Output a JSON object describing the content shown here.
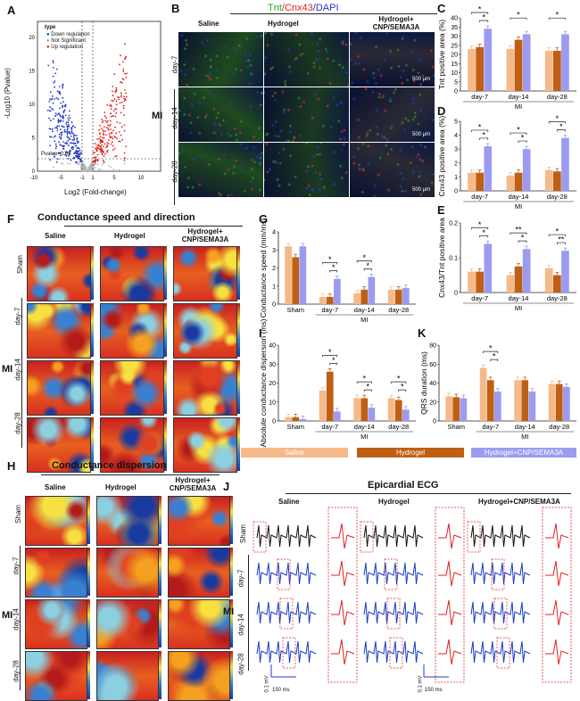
{
  "panel_labels": {
    "a": "A",
    "b": "B",
    "c": "C",
    "d": "D",
    "e": "E",
    "f": "F",
    "g": "G",
    "h": "H",
    "i": "I",
    "j": "J",
    "k": "K"
  },
  "colors": {
    "saline": "#f5b98a",
    "hydrogel": "#bf5f14",
    "combo": "#9b9cf0",
    "volcano_up": "#e02020",
    "volcano_down": "#2038c8",
    "volcano_ns": "#b8b8b8",
    "ecg_sham": "#111111",
    "ecg_mi": "#1a3cc8",
    "ecg_zoom": "#e02020"
  },
  "volcano": {
    "legend_title": "type",
    "legend_items": [
      "Down regulation",
      "Not Significant",
      "Up regulation"
    ],
    "pvalue_label": "Pvalue=0.05",
    "xlabel": "Log2 (Fold-change)",
    "ylabel": "-Log10 (Pvalue)",
    "xticks": [
      "-10",
      "-5",
      "-1",
      "1",
      "5",
      "10"
    ],
    "yticks": [
      "0",
      "5",
      "10",
      "15",
      "20"
    ]
  },
  "panel_b": {
    "stain_tnt": "Tnt",
    "stain_cnx": "/Cnx43",
    "stain_dapi": "/DAPI",
    "columns": [
      "Saline",
      "Hydrogel",
      "Hydrogel+ CNP/SEMA3A"
    ],
    "rows": [
      "day-7",
      "day-14",
      "day-28"
    ],
    "mi": "MI",
    "scalebar": "500 μm"
  },
  "panel_f": {
    "title": "Conductance speed and direction",
    "columns": [
      "Saline",
      "Hydrogel",
      "Hydrogel+ CNP/SEMA3A"
    ],
    "rows": [
      "Sham",
      "day-7",
      "day-14",
      "day-28"
    ],
    "mi": "MI"
  },
  "panel_h": {
    "title": "Conductance dispersion",
    "columns": [
      "Saline",
      "Hydrogel",
      "Hydrogel+ CNP/SEMA3A"
    ],
    "rows": [
      "Sham",
      "day-7",
      "day-14",
      "day-28"
    ],
    "mi": "MI"
  },
  "panel_j": {
    "title": "Epicardial ECG",
    "columns": [
      "Saline",
      "Hydrogel",
      "Hydrogel+CNP/SEMA3A"
    ],
    "rows": [
      "Sham",
      "day-7",
      "day-14",
      "day-28"
    ],
    "mi": "MI",
    "scale_mv": "0.1 mV",
    "scale_ms": "150 ms"
  },
  "legend_groups": [
    "Saline",
    "Hydrogel",
    "Hydrogel+CNP/SEMA3A"
  ],
  "chart_data": [
    {
      "id": "C",
      "type": "bar",
      "ylabel": "Tnt positive area (%)",
      "ylim": [
        0,
        40
      ],
      "yticks": [
        0,
        5,
        10,
        15,
        20,
        25,
        30,
        35,
        40
      ],
      "categories": [
        "day-7",
        "day-14",
        "day-28"
      ],
      "group_label": "MI",
      "series": [
        {
          "name": "Saline",
          "values": [
            23,
            23,
            22
          ]
        },
        {
          "name": "Hydrogel",
          "values": [
            24,
            28,
            22
          ]
        },
        {
          "name": "Hydrogel+CNP/SEMA3A",
          "values": [
            34,
            31,
            31
          ]
        }
      ],
      "sig": [
        {
          "c": 0,
          "a": 0,
          "b": 2,
          "t": "*",
          "lvl": 1
        },
        {
          "c": 0,
          "a": 1,
          "b": 2,
          "t": "*",
          "lvl": 0
        },
        {
          "c": 1,
          "a": 0,
          "b": 2,
          "t": "*",
          "lvl": 1
        },
        {
          "c": 2,
          "a": 0,
          "b": 2,
          "t": "*",
          "lvl": 1
        }
      ]
    },
    {
      "id": "D",
      "type": "bar",
      "ylabel": "Cnx43 positive area (%)",
      "ylim": [
        0,
        5
      ],
      "yticks": [
        0,
        1,
        2,
        3,
        4,
        5
      ],
      "categories": [
        "day-7",
        "day-14",
        "day-28"
      ],
      "group_label": "MI",
      "series": [
        {
          "name": "Saline",
          "values": [
            1.3,
            1.1,
            1.5
          ]
        },
        {
          "name": "Hydrogel",
          "values": [
            1.3,
            1.3,
            1.4
          ]
        },
        {
          "name": "Hydrogel+CNP/SEMA3A",
          "values": [
            3.2,
            3.0,
            3.8
          ]
        }
      ],
      "sig": [
        {
          "c": 0,
          "a": 0,
          "b": 2,
          "t": "*",
          "lvl": 1
        },
        {
          "c": 0,
          "a": 1,
          "b": 2,
          "t": "*",
          "lvl": 0
        },
        {
          "c": 1,
          "a": 0,
          "b": 2,
          "t": "*",
          "lvl": 1
        },
        {
          "c": 1,
          "a": 1,
          "b": 2,
          "t": "*",
          "lvl": 0
        },
        {
          "c": 2,
          "a": 0,
          "b": 2,
          "t": "*",
          "lvl": 1
        },
        {
          "c": 2,
          "a": 1,
          "b": 2,
          "t": "*",
          "lvl": 0
        }
      ]
    },
    {
      "id": "E",
      "type": "bar",
      "ylabel": "Cnx43/Tnt positive area",
      "ylim": [
        0,
        0.2
      ],
      "yticks": [
        0,
        0.1,
        0.2
      ],
      "yticklabels": [
        "0",
        "0.1",
        "0.2"
      ],
      "categories": [
        "day-7",
        "day-14",
        "day-28"
      ],
      "group_label": "MI",
      "series": [
        {
          "name": "Saline",
          "values": [
            0.06,
            0.05,
            0.07
          ]
        },
        {
          "name": "Hydrogel",
          "values": [
            0.06,
            0.075,
            0.05
          ]
        },
        {
          "name": "Hydrogel+CNP/SEMA3A",
          "values": [
            0.14,
            0.125,
            0.12
          ]
        }
      ],
      "sig": [
        {
          "c": 0,
          "a": 0,
          "b": 2,
          "t": "*",
          "lvl": 1
        },
        {
          "c": 0,
          "a": 1,
          "b": 2,
          "t": "*",
          "lvl": 0
        },
        {
          "c": 1,
          "a": 0,
          "b": 2,
          "t": "**",
          "lvl": 1
        },
        {
          "c": 1,
          "a": 1,
          "b": 2,
          "t": "*",
          "lvl": 0
        },
        {
          "c": 2,
          "a": 0,
          "b": 2,
          "t": "*",
          "lvl": 1
        },
        {
          "c": 2,
          "a": 1,
          "b": 2,
          "t": "**",
          "lvl": 0
        }
      ]
    },
    {
      "id": "G",
      "type": "bar",
      "ylabel": "Conductance speed (mm/ms)",
      "ylim": [
        0,
        4
      ],
      "yticks": [
        0,
        1,
        2,
        3,
        4
      ],
      "categories": [
        "Sham",
        "day-7",
        "day-14",
        "day-28"
      ],
      "group_label": "MI",
      "series": [
        {
          "name": "Saline",
          "values": [
            3.2,
            0.4,
            0.6,
            0.8
          ]
        },
        {
          "name": "Hydrogel",
          "values": [
            2.6,
            0.4,
            0.8,
            0.8
          ]
        },
        {
          "name": "Hydrogel+CNP/SEMA3A",
          "values": [
            3.2,
            1.4,
            1.5,
            0.9
          ]
        }
      ],
      "sig": [
        {
          "c": 1,
          "a": 0,
          "b": 2,
          "t": "*",
          "lvl": 1
        },
        {
          "c": 1,
          "a": 1,
          "b": 2,
          "t": "*",
          "lvl": 0
        },
        {
          "c": 2,
          "a": 0,
          "b": 2,
          "t": "*",
          "lvl": 1
        },
        {
          "c": 2,
          "a": 1,
          "b": 2,
          "t": "*",
          "lvl": 0
        }
      ]
    },
    {
      "id": "I",
      "type": "bar",
      "ylabel": "Absolute conductance dispersion (ms)",
      "ylim": [
        0,
        40
      ],
      "yticks": [
        0,
        10,
        20,
        30,
        40
      ],
      "categories": [
        "Sham",
        "day-7",
        "day-14",
        "day-28"
      ],
      "group_label": "MI",
      "series": [
        {
          "name": "Saline",
          "values": [
            2,
            16,
            12,
            12
          ]
        },
        {
          "name": "Hydrogel",
          "values": [
            2,
            26,
            12,
            11
          ]
        },
        {
          "name": "Hydrogel+CNP/SEMA3A",
          "values": [
            1,
            5,
            7,
            6
          ]
        }
      ],
      "sig": [
        {
          "c": 1,
          "a": 0,
          "b": 2,
          "t": "*",
          "lvl": 1
        },
        {
          "c": 1,
          "a": 1,
          "b": 2,
          "t": "*",
          "lvl": 0
        },
        {
          "c": 2,
          "a": 0,
          "b": 2,
          "t": "*",
          "lvl": 1
        },
        {
          "c": 2,
          "a": 1,
          "b": 2,
          "t": "*",
          "lvl": 0
        },
        {
          "c": 3,
          "a": 0,
          "b": 2,
          "t": "*",
          "lvl": 1
        },
        {
          "c": 3,
          "a": 1,
          "b": 2,
          "t": "*",
          "lvl": 0
        }
      ]
    },
    {
      "id": "K",
      "type": "bar",
      "ylabel": "QRS duration (ms)",
      "ylim": [
        0,
        80
      ],
      "yticks": [
        0,
        20,
        40,
        60,
        80
      ],
      "categories": [
        "Sham",
        "day-7",
        "day-14",
        "day-28"
      ],
      "group_label": "MI",
      "series": [
        {
          "name": "Saline",
          "values": [
            26,
            56,
            43,
            39
          ]
        },
        {
          "name": "Hydrogel",
          "values": [
            25,
            43,
            43,
            39
          ]
        },
        {
          "name": "Hydrogel+CNP/SEMA3A",
          "values": [
            24,
            31,
            31,
            36
          ]
        }
      ],
      "sig": [
        {
          "c": 1,
          "a": 0,
          "b": 2,
          "t": "*",
          "lvl": 1
        },
        {
          "c": 1,
          "a": 1,
          "b": 2,
          "t": "*",
          "lvl": 0
        }
      ]
    }
  ]
}
